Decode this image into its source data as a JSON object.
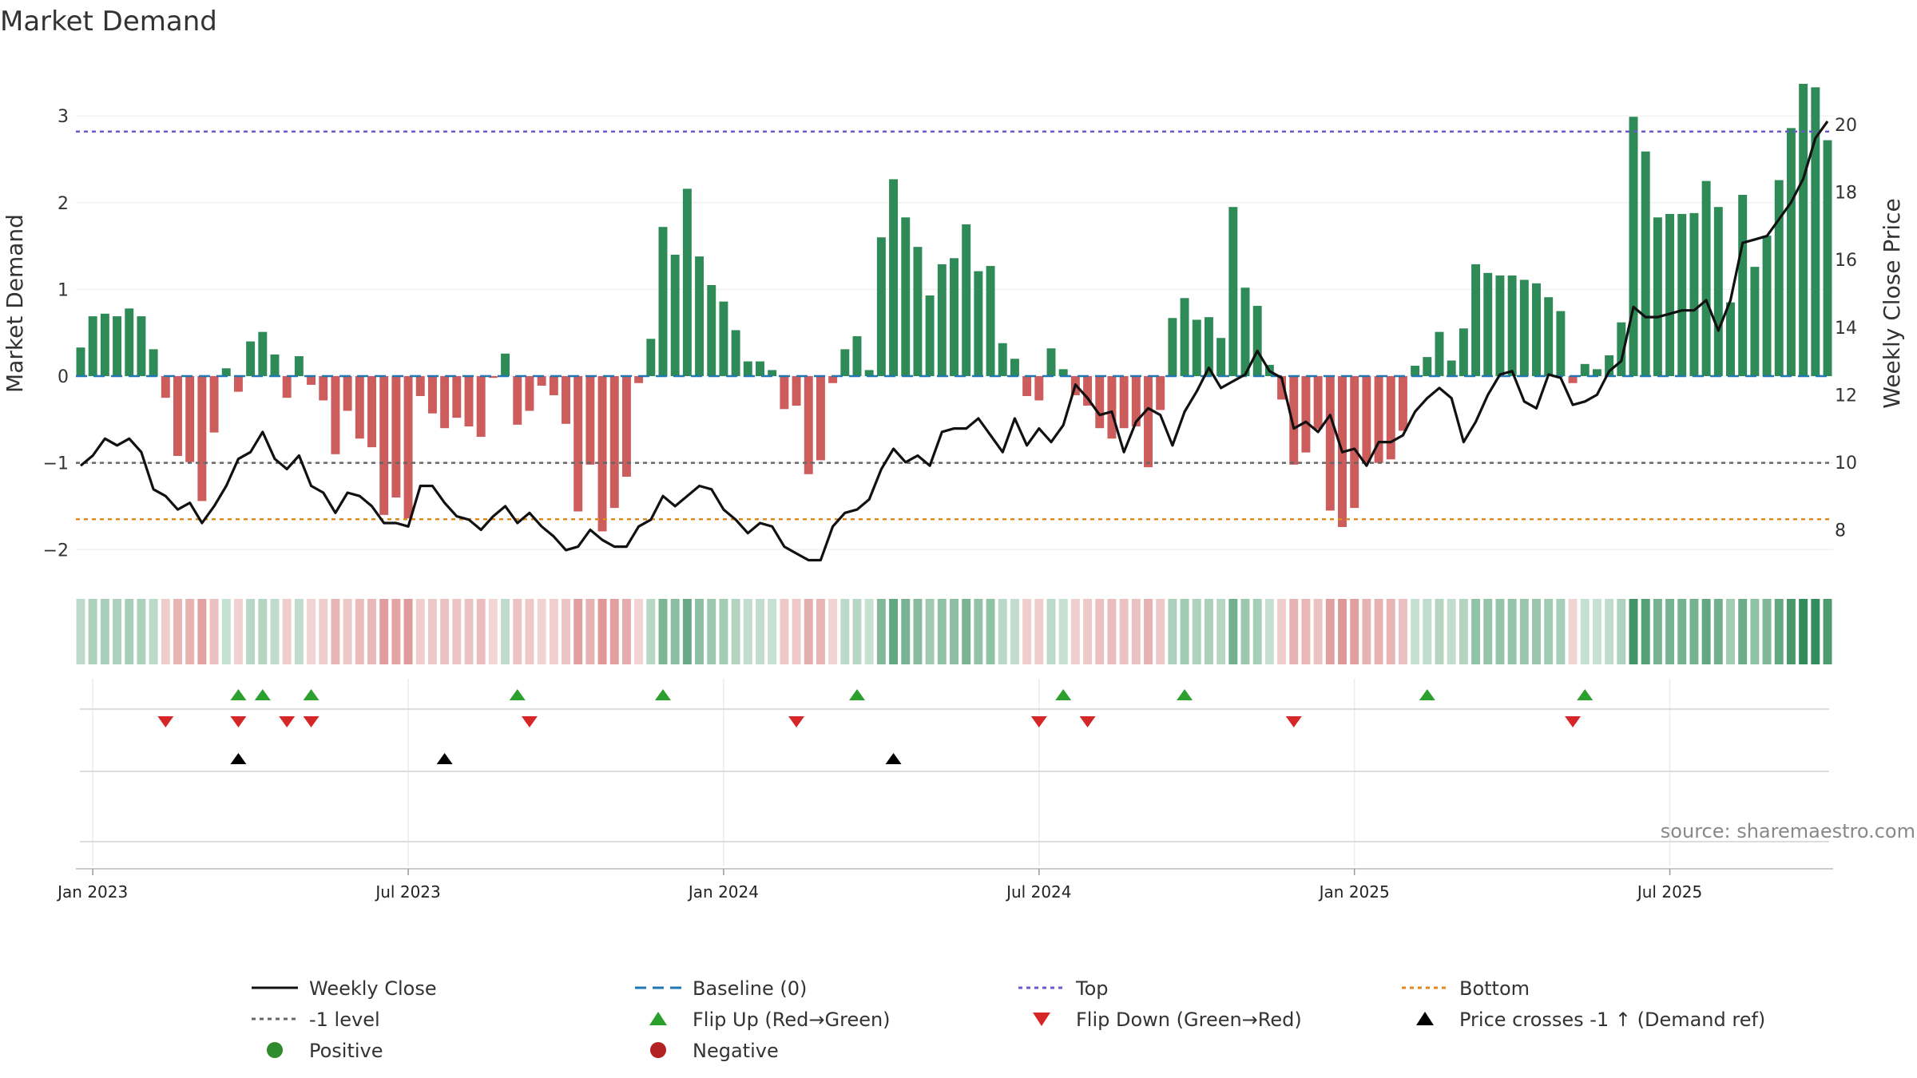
{
  "chart_data": {
    "type": "bar",
    "title": "Market Demand",
    "ylabel_left": "Market Demand",
    "ylabel_right": "Weekly Close Price",
    "ylim_left": [
      -2.2,
      3.6
    ],
    "ylim_right": [
      6.9,
      21.8
    ],
    "yticks_left": [
      3,
      2,
      1,
      0,
      -1,
      -2
    ],
    "yticks_left_labels": [
      "3",
      "2",
      "1",
      "0",
      "−1",
      "−2"
    ],
    "yticks_right": [
      20,
      18,
      16,
      14,
      12,
      10,
      8
    ],
    "x_ticks": [
      {
        "label": "Jan 2023",
        "week": 1
      },
      {
        "label": "Jul 2023",
        "week": 27
      },
      {
        "label": "Jan 2024",
        "week": 53
      },
      {
        "label": "Jul 2024",
        "week": 79
      },
      {
        "label": "Jan 2025",
        "week": 105
      },
      {
        "label": "Jul 2025",
        "week": 131
      }
    ],
    "week_count": 145,
    "demand": [
      0.33,
      0.69,
      0.72,
      0.69,
      0.78,
      0.69,
      0.31,
      -0.25,
      -0.92,
      -0.99,
      -1.44,
      -0.65,
      0.09,
      -0.18,
      0.4,
      0.51,
      0.25,
      -0.25,
      0.23,
      -0.1,
      -0.28,
      -0.9,
      -0.4,
      -0.72,
      -0.82,
      -1.6,
      -1.4,
      -1.64,
      -0.23,
      -0.43,
      -0.6,
      -0.48,
      -0.58,
      -0.7,
      -0.02,
      0.26,
      -0.56,
      -0.4,
      -0.11,
      -0.22,
      -0.55,
      -1.56,
      -1.02,
      -1.79,
      -1.52,
      -1.16,
      -0.08,
      0.43,
      1.72,
      1.4,
      2.16,
      1.38,
      1.05,
      0.86,
      0.53,
      0.17,
      0.17,
      0.07,
      -0.38,
      -0.34,
      -1.13,
      -0.97,
      -0.08,
      0.31,
      0.46,
      0.07,
      1.6,
      2.27,
      1.83,
      1.49,
      0.93,
      1.29,
      1.36,
      1.75,
      1.21,
      1.27,
      0.38,
      0.2,
      -0.23,
      -0.28,
      0.32,
      0.08,
      -0.22,
      -0.34,
      -0.6,
      -0.72,
      -0.6,
      -0.58,
      -1.05,
      -0.39,
      0.67,
      0.9,
      0.65,
      0.68,
      0.44,
      1.95,
      1.02,
      0.81,
      0.13,
      -0.27,
      -1.02,
      -0.88,
      -0.61,
      -1.55,
      -1.74,
      -1.52,
      -1.0,
      -1.0,
      -0.96,
      -0.63,
      0.12,
      0.22,
      0.51,
      0.18,
      0.55,
      1.29,
      1.19,
      1.16,
      1.16,
      1.11,
      1.07,
      0.91,
      0.75,
      -0.08,
      0.14,
      0.08,
      0.24,
      0.62,
      2.99,
      2.59,
      1.83,
      1.87,
      1.87,
      1.88,
      2.25,
      1.95,
      0.85,
      2.09,
      1.26,
      1.62,
      2.26,
      2.86,
      3.37,
      3.33,
      2.72
    ],
    "price": [
      9.9,
      10.2,
      10.7,
      10.5,
      10.7,
      10.3,
      9.2,
      9.0,
      8.6,
      8.8,
      8.2,
      8.7,
      9.3,
      10.1,
      10.3,
      10.9,
      10.1,
      9.8,
      10.2,
      9.3,
      9.1,
      8.5,
      9.1,
      9.0,
      8.7,
      8.2,
      8.2,
      8.1,
      9.3,
      9.3,
      8.8,
      8.4,
      8.3,
      8.0,
      8.4,
      8.7,
      8.2,
      8.5,
      8.1,
      7.8,
      7.4,
      7.5,
      8.0,
      7.7,
      7.5,
      7.5,
      8.1,
      8.3,
      9.0,
      8.7,
      9.0,
      9.3,
      9.2,
      8.6,
      8.3,
      7.9,
      8.2,
      8.1,
      7.5,
      7.3,
      7.1,
      7.1,
      8.1,
      8.5,
      8.6,
      8.9,
      9.8,
      10.4,
      10.0,
      10.2,
      9.9,
      10.9,
      11.0,
      11.0,
      11.3,
      10.8,
      10.3,
      11.3,
      10.5,
      11.0,
      10.6,
      11.1,
      12.3,
      11.9,
      11.4,
      11.5,
      10.3,
      11.2,
      11.6,
      11.4,
      10.5,
      11.5,
      12.1,
      12.8,
      12.2,
      12.4,
      12.6,
      13.3,
      12.7,
      12.5,
      11.0,
      11.2,
      10.9,
      11.4,
      10.3,
      10.4,
      9.9,
      10.6,
      10.6,
      10.8,
      11.5,
      11.9,
      12.2,
      11.9,
      10.6,
      11.2,
      12.0,
      12.6,
      12.7,
      11.8,
      11.6,
      12.6,
      12.5,
      11.7,
      11.8,
      12.0,
      12.7,
      13.0,
      14.6,
      14.3,
      14.3,
      14.4,
      14.5,
      14.5,
      14.8,
      13.9,
      14.8,
      16.5,
      16.6,
      16.7,
      17.2,
      17.7,
      18.4,
      19.6,
      20.1
    ],
    "levels": {
      "top": 2.82,
      "minus_one": -1.0,
      "bottom": -1.65
    },
    "flip_up_weeks": [
      13,
      15,
      19,
      36,
      48,
      64,
      81,
      91,
      111,
      124
    ],
    "flip_down_weeks": [
      7,
      13,
      17,
      19,
      37,
      59,
      79,
      83,
      100,
      123
    ],
    "price_cross_weeks": [
      13,
      30,
      67
    ],
    "colors": {
      "positive_bar": "#2e8b57",
      "negative_bar": "#cd5c5c",
      "price_line": "#111111",
      "baseline": "#1f77b4",
      "top": "#6a5acd",
      "minus_one": "#666666",
      "bottom": "#e08a1e",
      "flip_up": "#2ca02c",
      "flip_down": "#d62728",
      "cross": "#000000"
    }
  },
  "legend": [
    {
      "label": "Weekly Close",
      "symbol": "line-solid",
      "color": "#111111"
    },
    {
      "label": "Baseline (0)",
      "symbol": "line-dashed",
      "color": "#1f77b4"
    },
    {
      "label": "Top",
      "symbol": "line-dotted",
      "color": "#6a5acd"
    },
    {
      "label": "Bottom",
      "symbol": "line-dotted",
      "color": "#e08a1e"
    },
    {
      "label": "-1 level",
      "symbol": "line-dotted",
      "color": "#666666"
    },
    {
      "label": "Flip Up (Red→Green)",
      "symbol": "triangle-up",
      "color": "#2ca02c"
    },
    {
      "label": "Flip Down (Green→Red)",
      "symbol": "triangle-down",
      "color": "#d62728"
    },
    {
      "label": "Price crosses -1 ↑ (Demand ref)",
      "symbol": "triangle-up",
      "color": "#000000"
    },
    {
      "label": "Positive",
      "symbol": "dot",
      "color": "#2e8b2e"
    },
    {
      "label": "Negative",
      "symbol": "dot",
      "color": "#b22222"
    }
  ],
  "source": "source: sharemaestro.com"
}
